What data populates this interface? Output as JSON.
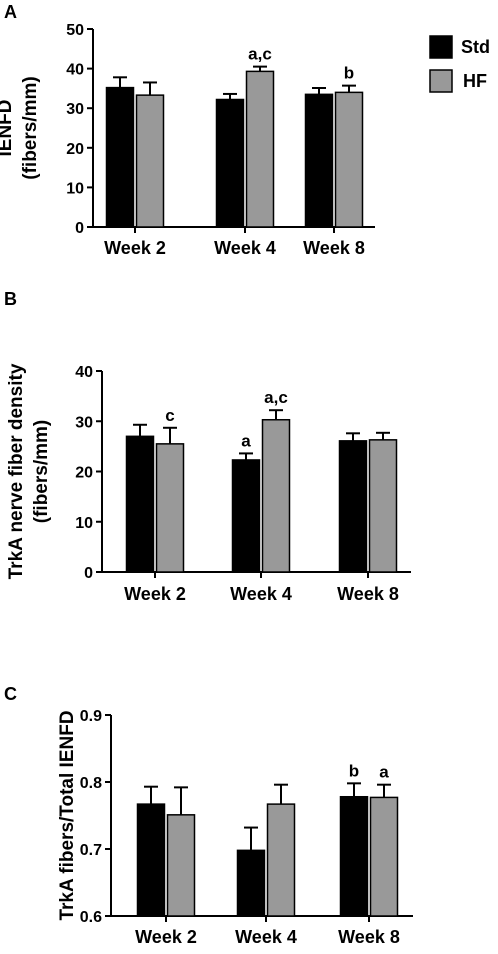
{
  "colors": {
    "std": "#000000",
    "hf": "#999999",
    "axis": "#000000"
  },
  "legend": [
    {
      "label": "Std",
      "color": "#000000"
    },
    {
      "label": "HF",
      "color": "#999999"
    }
  ],
  "chart_data": [
    {
      "panel": "A",
      "type": "bar",
      "categories": [
        "Week 2",
        "Week 4",
        "Week 8"
      ],
      "ylabel_lines": [
        "IENFD",
        "(fibers/mm)"
      ],
      "ylim": [
        0,
        50
      ],
      "yticks": [
        0,
        10,
        20,
        30,
        40,
        50
      ],
      "tick_labels": [
        "0",
        "10",
        "20",
        "30",
        "40",
        "50"
      ],
      "grid": false,
      "legend_position": "top-right",
      "series": [
        {
          "name": "Std",
          "values": [
            35.2,
            32.2,
            33.5
          ],
          "errors": [
            2.6,
            1.4,
            1.6
          ],
          "annotations": [
            "",
            "",
            ""
          ]
        },
        {
          "name": "HF",
          "values": [
            33.3,
            39.3,
            34.0
          ],
          "errors": [
            3.2,
            1.2,
            1.7
          ],
          "annotations": [
            "",
            "a,c",
            "b"
          ]
        }
      ]
    },
    {
      "panel": "B",
      "type": "bar",
      "categories": [
        "Week 2",
        "Week 4",
        "Week 8"
      ],
      "ylabel_lines": [
        "TrkA nerve fiber density",
        "(fibers/mm)"
      ],
      "ylim": [
        0,
        40
      ],
      "yticks": [
        0,
        10,
        20,
        30,
        40
      ],
      "tick_labels": [
        "0",
        "10",
        "20",
        "30",
        "40"
      ],
      "grid": false,
      "series": [
        {
          "name": "Std",
          "values": [
            27.0,
            22.3,
            26.1
          ],
          "errors": [
            2.3,
            1.3,
            1.5
          ],
          "annotations": [
            "",
            "a",
            ""
          ]
        },
        {
          "name": "HF",
          "values": [
            25.5,
            30.3,
            26.3
          ],
          "errors": [
            3.2,
            1.9,
            1.4
          ],
          "annotations": [
            "c",
            "a,c",
            ""
          ]
        }
      ]
    },
    {
      "panel": "C",
      "type": "bar",
      "categories": [
        "Week 2",
        "Week 4",
        "Week 8"
      ],
      "ylabel_lines": [
        "TrkA fibers/Total IENFD"
      ],
      "ylim": [
        0.6,
        0.9
      ],
      "yticks": [
        0.6,
        0.7,
        0.8,
        0.9
      ],
      "tick_labels": [
        "0.6",
        "0.7",
        "0.8",
        "0.9"
      ],
      "grid": false,
      "series": [
        {
          "name": "Std",
          "values": [
            0.767,
            0.698,
            0.778
          ],
          "errors": [
            0.026,
            0.034,
            0.02
          ],
          "annotations": [
            "",
            "",
            "b"
          ]
        },
        {
          "name": "HF",
          "values": [
            0.751,
            0.767,
            0.777
          ],
          "errors": [
            0.041,
            0.029,
            0.019
          ],
          "annotations": [
            "",
            "",
            "a"
          ]
        }
      ]
    }
  ]
}
